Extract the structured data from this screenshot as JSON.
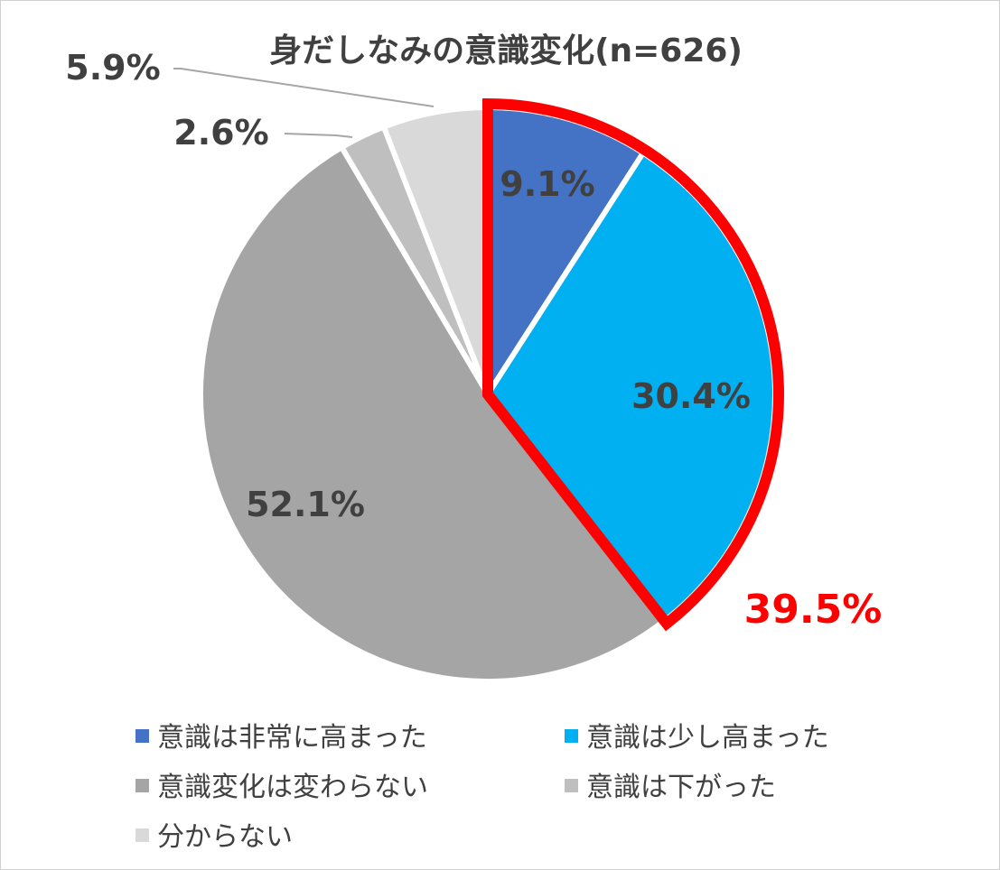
{
  "chart_data": {
    "type": "pie",
    "title": "身だしなみの意識変化(n=626)",
    "slices": [
      {
        "label": "意識は非常に高まった",
        "value": 9.1,
        "display": "9.1%",
        "color": "#4472C4"
      },
      {
        "label": "意識は少し高まった",
        "value": 30.4,
        "display": "30.4%",
        "color": "#00B0F0"
      },
      {
        "label": "意識変化は変わらない",
        "value": 52.1,
        "display": "52.1%",
        "color": "#A5A5A5"
      },
      {
        "label": "意識は下がった",
        "value": 2.6,
        "display": "2.6%",
        "color": "#BFBFBF"
      },
      {
        "label": "分からない",
        "value": 5.9,
        "display": "5.9%",
        "color": "#D9D9D9"
      }
    ],
    "start_angle_deg": 0,
    "direction": "clockwise",
    "highlight": {
      "slices": [
        0,
        1
      ],
      "label": "39.5%",
      "color": "#FF0000"
    },
    "legend_position": "bottom"
  }
}
